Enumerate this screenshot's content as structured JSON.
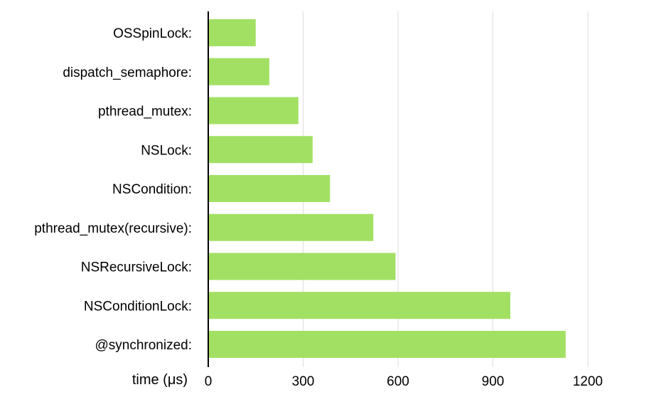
{
  "chart_data": {
    "type": "bar",
    "orientation": "horizontal",
    "categories": [
      "OSSpinLock:",
      "dispatch_semaphore:",
      "pthread_mutex:",
      "NSLock:",
      "NSCondition:",
      "pthread_mutex(recursive):",
      "NSRecursiveLock:",
      "NSConditionLock:",
      "@synchronized:"
    ],
    "values": [
      150,
      193,
      285,
      330,
      385,
      522,
      592,
      955,
      1130
    ],
    "xlabel": "time (μs)",
    "ylabel": "",
    "xlim": [
      0,
      1400
    ],
    "xticks": [
      0,
      300,
      600,
      900,
      1200
    ],
    "xtick_labels": [
      "0",
      "300",
      "600",
      "900",
      "1200"
    ],
    "grid": "vertical",
    "legend": "none",
    "colors": {
      "bar": "#a2e063",
      "grid": "#dddddd",
      "axis": "#000000"
    }
  }
}
